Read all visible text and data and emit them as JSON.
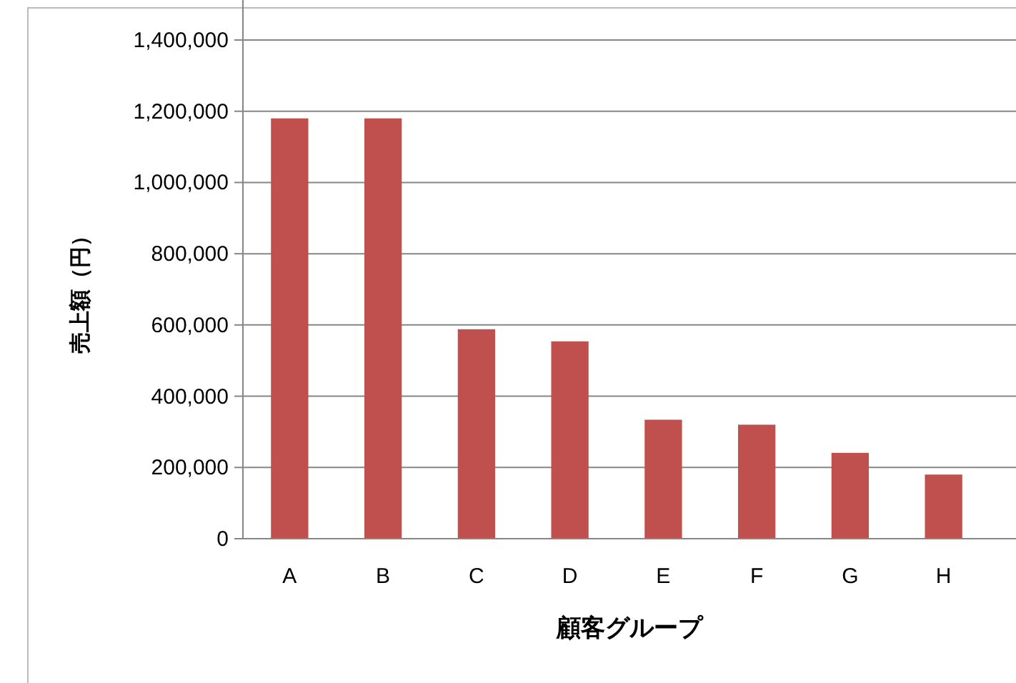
{
  "chart_data": {
    "type": "bar",
    "xlabel": "顧客グループ",
    "ylabel": "売上額（円）",
    "categories": [
      "A",
      "B",
      "C",
      "D",
      "E",
      "F",
      "G",
      "H"
    ],
    "values": [
      1180000,
      1180000,
      588000,
      554000,
      334000,
      320000,
      241000,
      180000
    ],
    "color": "#c0504d",
    "ylim": [
      0,
      1400000
    ],
    "yticks": [
      {
        "value": 0,
        "label": "0"
      },
      {
        "value": 200000,
        "label": "200,000"
      },
      {
        "value": 400000,
        "label": "400,000"
      },
      {
        "value": 600000,
        "label": "600,000"
      },
      {
        "value": 800000,
        "label": "800,000"
      },
      {
        "value": 1000000,
        "label": "1,000,000"
      },
      {
        "value": 1200000,
        "label": "1,200,000"
      },
      {
        "value": 1400000,
        "label": "1,400,000"
      }
    ],
    "grid": "y"
  }
}
